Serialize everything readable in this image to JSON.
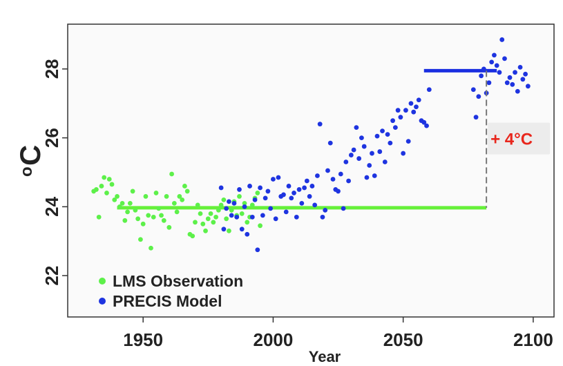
{
  "chart_data": {
    "type": "scatter",
    "xlabel": "Year",
    "ylabel_main": "C",
    "ylabel_sup": "o",
    "xlim": [
      1921,
      2108
    ],
    "ylim": [
      20.8,
      29.3
    ],
    "xticks": [
      "1950",
      "2000",
      "2050",
      "2100"
    ],
    "xtick_values": [
      1950,
      2000,
      2050,
      2100
    ],
    "yticks": [
      "22",
      "24",
      "26",
      "28"
    ],
    "ytick_values": [
      22,
      24,
      26,
      28
    ],
    "grid": false,
    "legend_position": "bottom-left",
    "series": [
      {
        "name": "LMS Observation",
        "color": "#5df04a",
        "points": [
          [
            1931,
            24.45
          ],
          [
            1932,
            24.5
          ],
          [
            1933,
            23.7
          ],
          [
            1934,
            24.6
          ],
          [
            1935,
            24.85
          ],
          [
            1936,
            24.4
          ],
          [
            1937,
            24.8
          ],
          [
            1938,
            24.65
          ],
          [
            1939,
            24.2
          ],
          [
            1940,
            24.3
          ],
          [
            1941,
            24.0
          ],
          [
            1942,
            24.1
          ],
          [
            1943,
            23.6
          ],
          [
            1944,
            23.85
          ],
          [
            1945,
            24.1
          ],
          [
            1946,
            24.45
          ],
          [
            1947,
            23.9
          ],
          [
            1948,
            23.65
          ],
          [
            1949,
            23.05
          ],
          [
            1950,
            23.5
          ],
          [
            1951,
            24.3
          ],
          [
            1952,
            23.75
          ],
          [
            1953,
            22.8
          ],
          [
            1954,
            23.7
          ],
          [
            1955,
            24.4
          ],
          [
            1956,
            23.95
          ],
          [
            1957,
            23.75
          ],
          [
            1958,
            23.6
          ],
          [
            1959,
            24.3
          ],
          [
            1960,
            23.4
          ],
          [
            1961,
            24.95
          ],
          [
            1962,
            24.1
          ],
          [
            1963,
            23.85
          ],
          [
            1964,
            24.3
          ],
          [
            1965,
            24.2
          ],
          [
            1966,
            24.6
          ],
          [
            1967,
            24.45
          ],
          [
            1968,
            23.2
          ],
          [
            1969,
            23.15
          ],
          [
            1970,
            23.55
          ],
          [
            1971,
            24.05
          ],
          [
            1972,
            23.8
          ],
          [
            1973,
            23.5
          ],
          [
            1974,
            23.3
          ],
          [
            1975,
            23.65
          ],
          [
            1976,
            23.8
          ],
          [
            1977,
            23.55
          ],
          [
            1978,
            23.7
          ],
          [
            1979,
            23.9
          ],
          [
            1980,
            24.05
          ],
          [
            1981,
            24.2
          ],
          [
            1982,
            23.65
          ],
          [
            1983,
            23.3
          ],
          [
            1984,
            23.9
          ],
          [
            1985,
            24.15
          ],
          [
            1986,
            23.75
          ],
          [
            1987,
            24.3
          ],
          [
            1988,
            23.8
          ],
          [
            1989,
            24.1
          ],
          [
            1990,
            23.55
          ],
          [
            1991,
            23.7
          ],
          [
            1992,
            24.05
          ],
          [
            1993,
            24.25
          ],
          [
            1994,
            24.4
          ],
          [
            1995,
            23.45
          ]
        ]
      },
      {
        "name": "PRECIS Model",
        "color": "#1e34e0",
        "points": [
          [
            1980,
            24.55
          ],
          [
            1981,
            23.35
          ],
          [
            1982,
            23.95
          ],
          [
            1983,
            24.15
          ],
          [
            1984,
            23.75
          ],
          [
            1985,
            24.1
          ],
          [
            1986,
            23.7
          ],
          [
            1987,
            24.5
          ],
          [
            1988,
            23.35
          ],
          [
            1989,
            24.0
          ],
          [
            1990,
            23.2
          ],
          [
            1991,
            24.6
          ],
          [
            1992,
            23.7
          ],
          [
            1993,
            24.2
          ],
          [
            1994,
            22.75
          ],
          [
            1995,
            24.55
          ],
          [
            1996,
            23.75
          ],
          [
            1997,
            24.25
          ],
          [
            1998,
            24.45
          ],
          [
            1999,
            23.95
          ],
          [
            2000,
            24.8
          ],
          [
            2001,
            23.65
          ],
          [
            2002,
            24.85
          ],
          [
            2003,
            24.3
          ],
          [
            2004,
            24.35
          ],
          [
            2005,
            23.85
          ],
          [
            2006,
            24.6
          ],
          [
            2007,
            24.25
          ],
          [
            2008,
            24.4
          ],
          [
            2009,
            23.7
          ],
          [
            2010,
            24.5
          ],
          [
            2011,
            24.1
          ],
          [
            2012,
            24.55
          ],
          [
            2013,
            24.75
          ],
          [
            2014,
            24.3
          ],
          [
            2015,
            24.6
          ],
          [
            2016,
            24.05
          ],
          [
            2017,
            24.9
          ],
          [
            2018,
            26.4
          ],
          [
            2019,
            23.7
          ],
          [
            2020,
            23.9
          ],
          [
            2021,
            25.05
          ],
          [
            2022,
            25.85
          ],
          [
            2023,
            24.8
          ],
          [
            2024,
            24.5
          ],
          [
            2025,
            24.45
          ],
          [
            2026,
            24.95
          ],
          [
            2027,
            23.95
          ],
          [
            2028,
            25.3
          ],
          [
            2029,
            24.75
          ],
          [
            2030,
            25.5
          ],
          [
            2031,
            25.65
          ],
          [
            2032,
            26.3
          ],
          [
            2033,
            25.4
          ],
          [
            2034,
            26.0
          ],
          [
            2035,
            25.75
          ],
          [
            2036,
            24.85
          ],
          [
            2037,
            25.2
          ],
          [
            2038,
            25.55
          ],
          [
            2039,
            24.9
          ],
          [
            2040,
            26.05
          ],
          [
            2041,
            25.6
          ],
          [
            2042,
            26.2
          ],
          [
            2043,
            25.3
          ],
          [
            2044,
            26.1
          ],
          [
            2045,
            25.85
          ],
          [
            2046,
            26.5
          ],
          [
            2047,
            26.3
          ],
          [
            2048,
            26.8
          ],
          [
            2049,
            26.6
          ],
          [
            2050,
            25.55
          ],
          [
            2051,
            26.8
          ],
          [
            2052,
            25.9
          ],
          [
            2053,
            27.0
          ],
          [
            2054,
            26.75
          ],
          [
            2055,
            26.9
          ],
          [
            2056,
            27.1
          ],
          [
            2057,
            26.5
          ],
          [
            2058,
            26.45
          ],
          [
            2059,
            26.35
          ],
          [
            2060,
            27.4
          ],
          [
            2077,
            27.4
          ],
          [
            2078,
            26.6
          ],
          [
            2079,
            27.2
          ],
          [
            2080,
            27.8
          ],
          [
            2081,
            28.0
          ],
          [
            2082,
            27.3
          ],
          [
            2083,
            27.6
          ],
          [
            2084,
            28.2
          ],
          [
            2085,
            28.4
          ],
          [
            2086,
            28.1
          ],
          [
            2087,
            27.9
          ],
          [
            2088,
            28.85
          ],
          [
            2089,
            28.3
          ],
          [
            2090,
            27.6
          ],
          [
            2091,
            27.75
          ],
          [
            2092,
            27.55
          ],
          [
            2093,
            27.9
          ],
          [
            2094,
            27.35
          ],
          [
            2095,
            28.05
          ],
          [
            2096,
            27.7
          ],
          [
            2097,
            27.85
          ],
          [
            2098,
            27.5
          ]
        ]
      }
    ],
    "reference_lines": [
      {
        "color": "#66f03a",
        "x_start": 1940,
        "x_end": 2082,
        "y": 23.97
      },
      {
        "color": "#1a2fe0",
        "x_start": 2058,
        "x_end": 2086,
        "y": 27.95
      }
    ],
    "annotation": {
      "text": "+ 4°C",
      "color": "#e8261c",
      "x": 2082,
      "y_from": 23.97,
      "y_to": 27.95
    }
  }
}
